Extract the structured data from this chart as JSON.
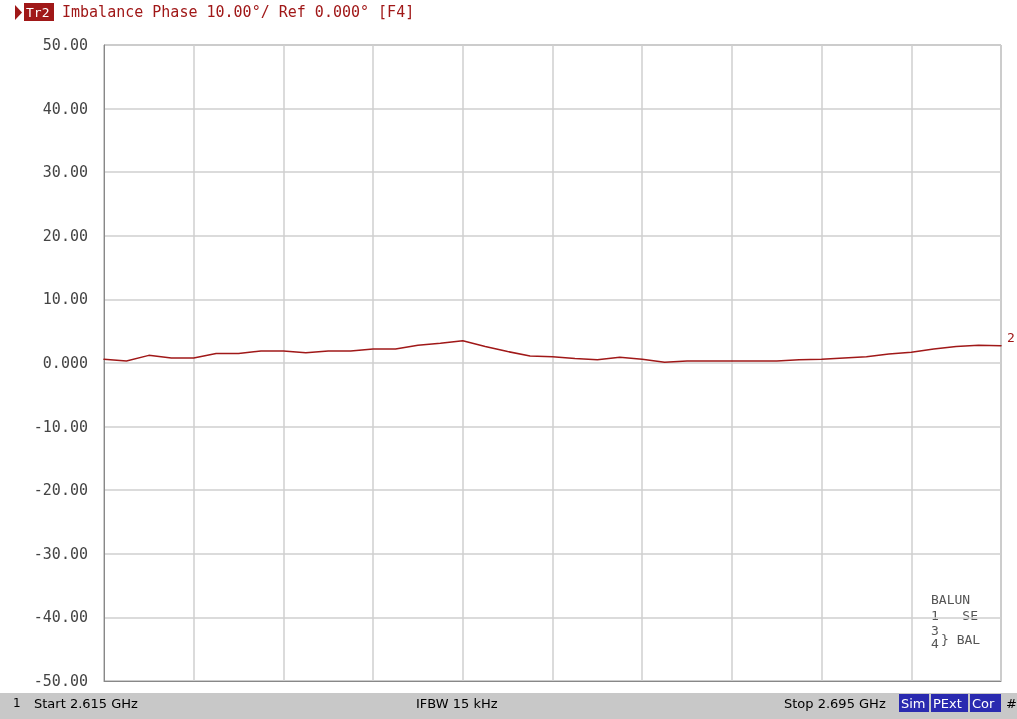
{
  "chart_data": {
    "type": "line",
    "title": "Imbalance Phase 10.00°/ Ref 0.000° [F4]",
    "annotations": [
      "Tr2",
      "1",
      "Start 2.615 GHz",
      "IFBW 15 kHz",
      "Stop 2.695 GHz",
      "Sim",
      "PExt",
      "Cor",
      "#",
      "BALUN",
      "1   SE",
      "3",
      "4",
      "} BAL"
    ],
    "series": [
      {
        "name": "2",
        "color": "#a01818",
        "values": [
          0.6,
          0.3,
          1.2,
          0.8,
          0.8,
          1.5,
          1.5,
          1.9,
          1.9,
          1.6,
          1.9,
          1.9,
          2.2,
          2.2,
          2.8,
          3.1,
          3.5,
          2.6,
          1.8,
          1.1,
          1.0,
          0.7,
          0.5,
          0.9,
          0.6,
          0.1,
          0.3,
          0.3,
          0.3,
          0.3,
          0.3,
          0.5,
          0.6,
          0.8,
          1.0,
          1.4,
          1.7,
          2.2,
          2.6,
          2.8,
          2.7
        ]
      }
    ],
    "categories": [
      null,
      null,
      null,
      null,
      null,
      null,
      null,
      null,
      null,
      null,
      null,
      null,
      null,
      null,
      null,
      null,
      null,
      null,
      null,
      null,
      null,
      null,
      null,
      null,
      null,
      null,
      null,
      null,
      null,
      null,
      null,
      null,
      null,
      null,
      null,
      null,
      null,
      null,
      null,
      null,
      null
    ],
    "ylim": [
      -50,
      50
    ],
    "yticks": [
      {
        "value": -50,
        "label": "-50.00"
      },
      {
        "value": -40,
        "label": "-40.00"
      },
      {
        "value": -30,
        "label": "-30.00"
      },
      {
        "value": -20,
        "label": "-20.00"
      },
      {
        "value": -10,
        "label": "-10.00"
      },
      {
        "value": 0,
        "label": "0.000"
      },
      {
        "value": 10,
        "label": "10.00"
      },
      {
        "value": 20,
        "label": "20.00"
      },
      {
        "value": 30,
        "label": "30.00"
      },
      {
        "value": 40,
        "label": "40.00"
      },
      {
        "value": 50,
        "label": "50.00"
      }
    ],
    "tick_labels": "y",
    "grid": true,
    "marker": "none",
    "line_style": "solid"
  }
}
